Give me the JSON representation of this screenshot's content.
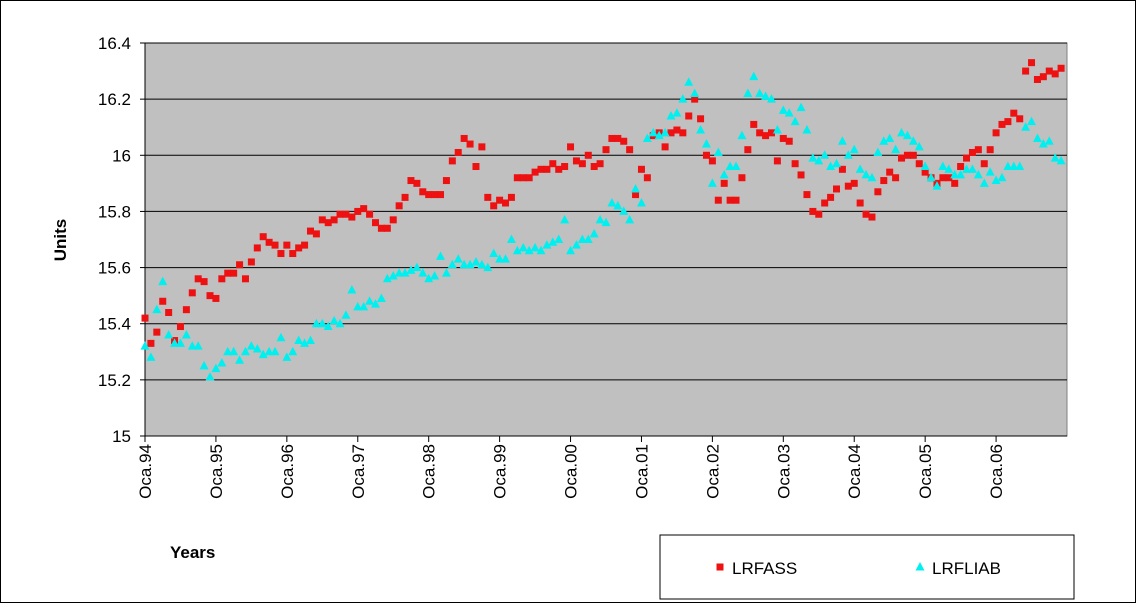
{
  "chart_data": {
    "type": "scatter",
    "y_label": "Units",
    "x_label": "Years",
    "categories": [
      "Oca.94",
      null,
      null,
      null,
      null,
      null,
      null,
      null,
      null,
      null,
      null,
      null,
      "Oca.95",
      null,
      null,
      null,
      null,
      null,
      null,
      null,
      null,
      null,
      null,
      null,
      "Oca.96",
      null,
      null,
      null,
      null,
      null,
      null,
      null,
      null,
      null,
      null,
      null,
      "Oca.97",
      null,
      null,
      null,
      null,
      null,
      null,
      null,
      null,
      null,
      null,
      null,
      "Oca.98",
      null,
      null,
      null,
      null,
      null,
      null,
      null,
      null,
      null,
      null,
      null,
      "Oca.99",
      null,
      null,
      null,
      null,
      null,
      null,
      null,
      null,
      null,
      null,
      null,
      "Oca.00",
      null,
      null,
      null,
      null,
      null,
      null,
      null,
      null,
      null,
      null,
      null,
      "Oca.01",
      null,
      null,
      null,
      null,
      null,
      null,
      null,
      null,
      null,
      null,
      null,
      "Oca.02",
      null,
      null,
      null,
      null,
      null,
      null,
      null,
      null,
      null,
      null,
      null,
      "Oca.03",
      null,
      null,
      null,
      null,
      null,
      null,
      null,
      null,
      null,
      null,
      null,
      "Oca.04",
      null,
      null,
      null,
      null,
      null,
      null,
      null,
      null,
      null,
      null,
      null,
      "Oca.05",
      null,
      null,
      null,
      null,
      null,
      null,
      null,
      null,
      null,
      null,
      null,
      "Oca.06",
      null,
      null,
      null,
      null,
      null,
      null,
      null,
      null,
      null,
      null,
      null
    ],
    "series": [
      {
        "name": "LRFASS",
        "color": "#ee1111",
        "marker": "square",
        "values": [
          15.42,
          15.33,
          15.37,
          15.48,
          15.44,
          15.34,
          15.39,
          15.45,
          15.51,
          15.56,
          15.55,
          15.5,
          15.49,
          15.56,
          15.58,
          15.58,
          15.61,
          15.56,
          15.62,
          15.67,
          15.71,
          15.69,
          15.68,
          15.65,
          15.68,
          15.65,
          15.67,
          15.68,
          15.73,
          15.72,
          15.77,
          15.76,
          15.77,
          15.79,
          15.79,
          15.78,
          15.8,
          15.81,
          15.79,
          15.76,
          15.74,
          15.74,
          15.77,
          15.82,
          15.85,
          15.91,
          15.9,
          15.87,
          15.86,
          15.86,
          15.86,
          15.91,
          15.98,
          16.01,
          16.06,
          16.04,
          15.96,
          16.03,
          15.85,
          15.82,
          15.84,
          15.83,
          15.85,
          15.92,
          15.92,
          15.92,
          15.94,
          15.95,
          15.95,
          15.97,
          15.95,
          15.96,
          16.03,
          15.98,
          15.97,
          16.0,
          15.96,
          15.97,
          16.02,
          16.06,
          16.06,
          16.05,
          16.02,
          15.86,
          15.95,
          15.92,
          16.07,
          16.08,
          16.03,
          16.08,
          16.09,
          16.08,
          16.14,
          16.2,
          16.13,
          16.0,
          15.98,
          15.84,
          15.9,
          15.84,
          15.84,
          15.92,
          16.02,
          16.11,
          16.08,
          16.07,
          16.08,
          15.98,
          16.06,
          16.05,
          15.97,
          15.93,
          15.86,
          15.8,
          15.79,
          15.83,
          15.85,
          15.88,
          15.95,
          15.89,
          15.9,
          15.83,
          15.79,
          15.78,
          15.87,
          15.91,
          15.94,
          15.92,
          15.99,
          16.0,
          16.0,
          15.97,
          15.94,
          15.92,
          15.9,
          15.92,
          15.92,
          15.9,
          15.96,
          15.99,
          16.01,
          16.02,
          15.97,
          16.02,
          16.08,
          16.11,
          16.12,
          16.15,
          16.13,
          16.3,
          16.33,
          16.27,
          16.28,
          16.3,
          16.29,
          16.31
        ]
      },
      {
        "name": "LRFLIAB",
        "color": "#00f0f0",
        "marker": "triangle",
        "values": [
          15.32,
          15.28,
          15.45,
          15.55,
          15.36,
          15.33,
          15.33,
          15.36,
          15.32,
          15.32,
          15.25,
          15.21,
          15.24,
          15.26,
          15.3,
          15.3,
          15.27,
          15.3,
          15.32,
          15.31,
          15.29,
          15.3,
          15.3,
          15.35,
          15.28,
          15.3,
          15.34,
          15.33,
          15.34,
          15.4,
          15.4,
          15.39,
          15.41,
          15.4,
          15.43,
          15.52,
          15.46,
          15.46,
          15.48,
          15.47,
          15.49,
          15.56,
          15.57,
          15.58,
          15.58,
          15.59,
          15.6,
          15.58,
          15.56,
          15.57,
          15.64,
          15.58,
          15.61,
          15.63,
          15.61,
          15.61,
          15.62,
          15.61,
          15.6,
          15.65,
          15.63,
          15.63,
          15.7,
          15.66,
          15.67,
          15.66,
          15.67,
          15.66,
          15.68,
          15.69,
          15.7,
          15.77,
          15.66,
          15.68,
          15.7,
          15.7,
          15.72,
          15.77,
          15.76,
          15.83,
          15.82,
          15.8,
          15.77,
          15.88,
          15.83,
          16.06,
          16.08,
          16.07,
          16.08,
          16.14,
          16.15,
          16.2,
          16.26,
          16.22,
          16.09,
          16.04,
          15.9,
          16.01,
          15.93,
          15.96,
          15.96,
          16.07,
          16.22,
          16.28,
          16.22,
          16.21,
          16.2,
          16.09,
          16.16,
          16.15,
          16.12,
          16.17,
          16.09,
          15.99,
          15.98,
          16.0,
          15.96,
          15.97,
          16.05,
          16.0,
          16.02,
          15.95,
          15.93,
          15.92,
          16.01,
          16.05,
          16.06,
          16.02,
          16.08,
          16.07,
          16.05,
          16.03,
          15.96,
          15.92,
          15.89,
          15.96,
          15.95,
          15.93,
          15.93,
          15.95,
          15.95,
          15.93,
          15.9,
          15.94,
          15.91,
          15.92,
          15.96,
          15.96,
          15.96,
          16.1,
          16.12,
          16.06,
          16.04,
          16.05,
          15.99,
          15.98
        ]
      }
    ],
    "ylim": [
      15,
      16.4
    ],
    "yticks": [
      15,
      15.2,
      15.4,
      15.6,
      15.8,
      16,
      16.2,
      16.4
    ],
    "grid": true,
    "plot_background": "#c0c0c0",
    "legend_position": "bottom-right"
  }
}
